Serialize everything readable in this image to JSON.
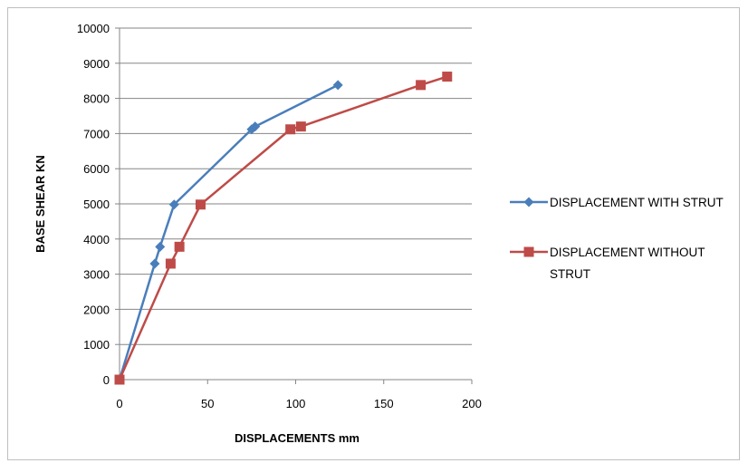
{
  "chart_data": {
    "type": "line",
    "title": "",
    "xlabel": "DISPLACEMENTS mm",
    "ylabel": "BASE SHEAR KN",
    "xlim": [
      0,
      200
    ],
    "ylim": [
      0,
      10000
    ],
    "x_ticks": [
      "0",
      "50",
      "100",
      "150",
      "200"
    ],
    "y_ticks": [
      "0",
      "1000",
      "2000",
      "3000",
      "4000",
      "5000",
      "6000",
      "7000",
      "8000",
      "9000",
      "10000"
    ],
    "grid": "horizontal",
    "legend_position": "right",
    "series": [
      {
        "name": "DISPLACEMENT WITH STRUT",
        "color": "#4a7ebb",
        "marker": "diamond",
        "points": [
          [
            0,
            0
          ],
          [
            20,
            3300
          ],
          [
            23,
            3780
          ],
          [
            31,
            4980
          ],
          [
            75,
            7120
          ],
          [
            77,
            7200
          ],
          [
            124,
            8380
          ]
        ]
      },
      {
        "name": "DISPLACEMENT WITHOUT STRUT",
        "color": "#be4b48",
        "marker": "square",
        "points": [
          [
            0,
            0
          ],
          [
            29,
            3300
          ],
          [
            34,
            3780
          ],
          [
            46,
            4980
          ],
          [
            97,
            7120
          ],
          [
            103,
            7200
          ],
          [
            171,
            8380
          ],
          [
            186,
            8620
          ]
        ]
      }
    ]
  }
}
